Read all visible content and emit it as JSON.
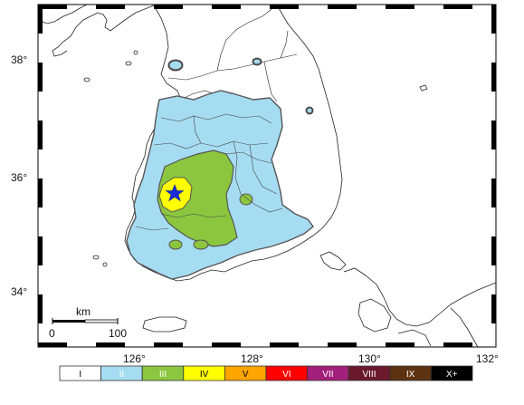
{
  "map": {
    "axes": {
      "lat_ticks": [
        "38°",
        "36°",
        "34°"
      ],
      "lon_ticks": [
        "126°",
        "128°",
        "130°",
        "132°"
      ]
    },
    "scale_bar": {
      "unit": "km",
      "start_label": "0",
      "end_label": "100"
    },
    "epicenter_marker": "star-icon",
    "colors": {
      "land": "#ffffff",
      "coast": "#222222",
      "intensity_I": "#ffffff",
      "intensity_II": "#a6dcf2",
      "intensity_III": "#8cc63f",
      "intensity_IV": "#ffff00",
      "intensity_V": "#ffa500",
      "intensity_VI": "#ff0000",
      "intensity_VII": "#a3207a",
      "intensity_VIII": "#6b1a2d",
      "intensity_IX": "#5b3310",
      "intensity_X": "#000000",
      "epicenter": "#1c2cd8"
    },
    "legend": [
      {
        "label": "I",
        "color": "#ffffff",
        "text_color": "#000000"
      },
      {
        "label": "II",
        "color": "#a6dcf2",
        "text_color": "#ffffff"
      },
      {
        "label": "III",
        "color": "#8cc63f",
        "text_color": "#ffffff"
      },
      {
        "label": "IV",
        "color": "#ffff00",
        "text_color": "#000000"
      },
      {
        "label": "V",
        "color": "#ffa500",
        "text_color": "#000000"
      },
      {
        "label": "VI",
        "color": "#ff0000",
        "text_color": "#ffffff"
      },
      {
        "label": "VII",
        "color": "#a3207a",
        "text_color": "#ffffff"
      },
      {
        "label": "VIII",
        "color": "#6b1a2d",
        "text_color": "#ffffff"
      },
      {
        "label": "IX",
        "color": "#5b3310",
        "text_color": "#ffffff"
      },
      {
        "label": "X+",
        "color": "#000000",
        "text_color": "#ffffff"
      }
    ]
  }
}
